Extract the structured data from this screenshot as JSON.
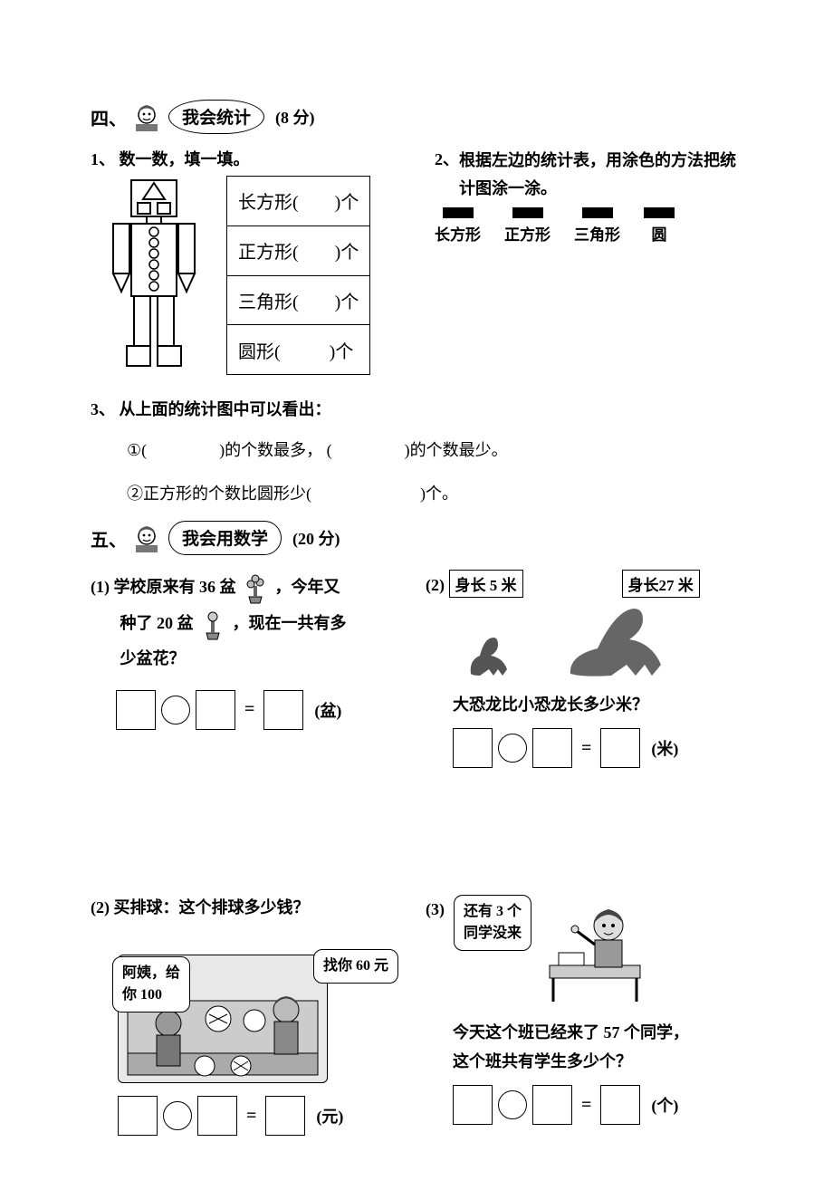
{
  "section4": {
    "number": "四、",
    "bubble": "我会统计",
    "points": "(8 分)",
    "q1": {
      "label": "1、",
      "text": "数一数，填一填。",
      "shapes": {
        "rect_label": "长方形(",
        "square_label": "正方形(",
        "tri_label": "三角形(",
        "circle_label": "圆形(",
        "tail": ")个"
      }
    },
    "q2": {
      "label": "2、",
      "text": "根据左边的统计表，用涂色的方法把统计图涂一涂。",
      "bar_labels": [
        "长方形",
        "正方形",
        "三角形",
        "圆"
      ],
      "segments": 11
    },
    "q3": {
      "label": "3、",
      "text": "从上面的统计图中可以看出：",
      "line1a": "①(",
      "line1b": ")的个数最多，  (",
      "line1c": ")的个数最少。",
      "line2a": "②正方形的个数比圆形少(",
      "line2b": ")个。"
    }
  },
  "section5": {
    "number": "五、",
    "bubble": "我会用数学",
    "points": "(20 分)",
    "wp1": {
      "num": "(1)",
      "t1": "学校原来有 36 盆",
      "t2": "，今年又",
      "t3": "种了 20 盆",
      "t4": "，现在一共有多",
      "t5": "少盆花？",
      "unit": "(盆)"
    },
    "wp2": {
      "num": "(2)",
      "len1": "身长 5 米",
      "len2": "身长27 米",
      "q": "大恐龙比小恐龙长多少米？",
      "unit": "(米)"
    },
    "wp3": {
      "num": "(2)",
      "title": "买排球：这个排球多少钱？",
      "speech1a": "阿姨，给",
      "speech1b": "你   100",
      "speech2": "找你 60 元",
      "unit": "(元)"
    },
    "wp4": {
      "num": "(3)",
      "speech1": "还有 3 个",
      "speech2": "同学没来",
      "line1": "今天这个班已经来了 57 个同学，",
      "line2": "这个班共有学生多少个？",
      "unit": "(个)"
    }
  }
}
